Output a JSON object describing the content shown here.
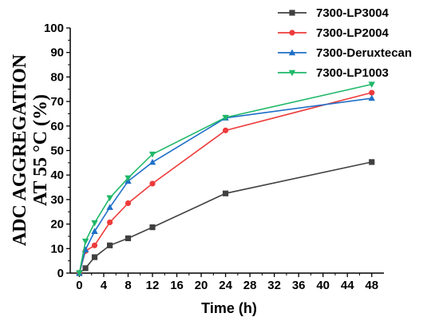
{
  "chart_data": {
    "type": "line",
    "xlabel": "Time (h)",
    "ylabel_lines": [
      "ADC AGGREGATION",
      "AT 55 °C (%)"
    ],
    "xlim": [
      -1.5,
      50
    ],
    "ylim": [
      0,
      100
    ],
    "x_ticks": [
      0,
      4,
      8,
      12,
      16,
      20,
      24,
      28,
      32,
      36,
      40,
      44,
      48
    ],
    "y_ticks": [
      0,
      10,
      20,
      30,
      40,
      50,
      60,
      70,
      80,
      90,
      100
    ],
    "x_tick_labels": [
      "0",
      "4",
      "8",
      "12",
      "16",
      "20",
      "24",
      "28",
      "32",
      "36",
      "40",
      "44",
      "48"
    ],
    "y_tick_labels": [
      "0",
      "10",
      "20",
      "30",
      "40",
      "50",
      "60",
      "70",
      "80",
      "90",
      "100"
    ],
    "grid": false,
    "legend_position": "top-right",
    "series": [
      {
        "name": "7300-LP3004",
        "color": "#404040",
        "marker": "square",
        "x": [
          0,
          1,
          2.5,
          5,
          8,
          12,
          24,
          48
        ],
        "y": [
          0,
          2,
          6.5,
          11.3,
          14.2,
          18.7,
          32.5,
          45.3
        ]
      },
      {
        "name": "7300-LP2004",
        "color": "#ee3b3b",
        "marker": "circle",
        "x": [
          0,
          1,
          2.5,
          5,
          8,
          12,
          24,
          48
        ],
        "y": [
          0,
          9,
          11.3,
          20.7,
          28.5,
          36.5,
          58.2,
          73.6
        ]
      },
      {
        "name": "7300-Deruxtecan",
        "color": "#1f6fc8",
        "marker": "triangle-up",
        "x": [
          0,
          1,
          2.5,
          5,
          8,
          12,
          24,
          48
        ],
        "y": [
          0,
          9.5,
          17,
          26.8,
          37.5,
          45.2,
          63.3,
          71.3
        ]
      },
      {
        "name": "7300-LP1003",
        "color": "#1fb868",
        "marker": "triangle-down",
        "x": [
          0,
          1,
          2.5,
          5,
          8,
          12,
          24,
          48
        ],
        "y": [
          0,
          13,
          20.5,
          30.7,
          38.8,
          48.5,
          63.5,
          77
        ]
      }
    ]
  }
}
